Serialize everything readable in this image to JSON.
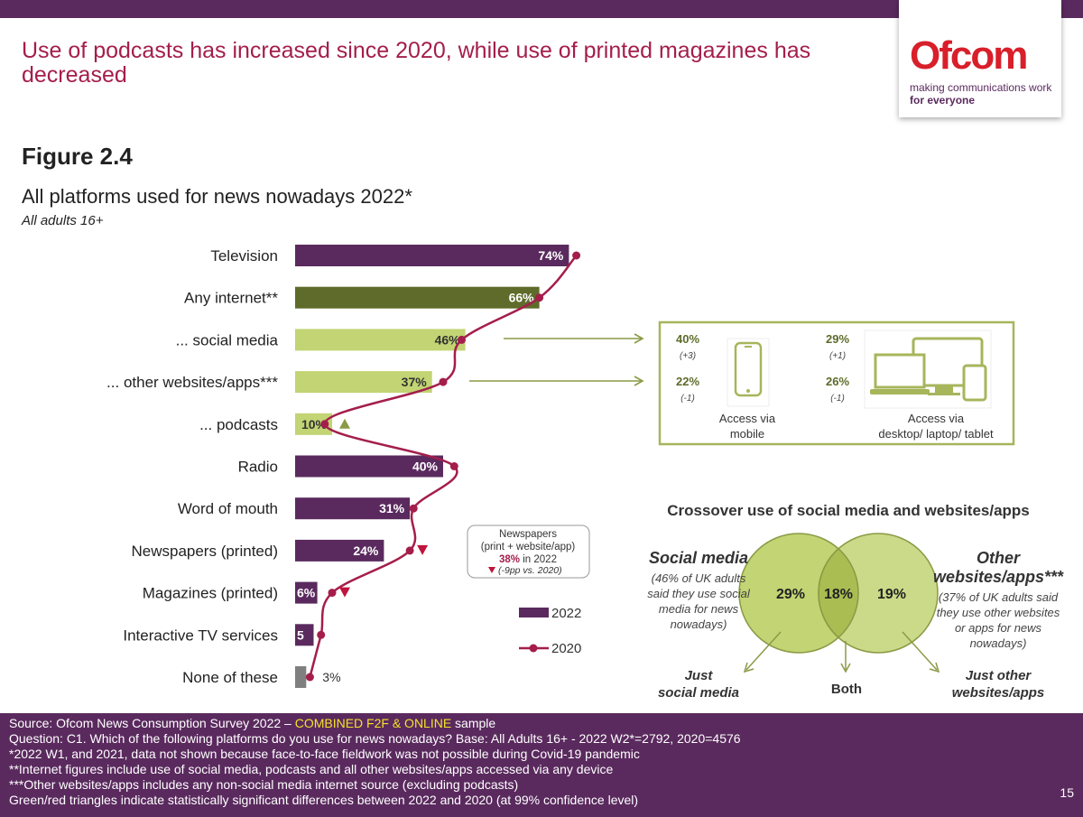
{
  "headline": "Use of podcasts has increased since 2020, while use of printed magazines has decreased",
  "logo": {
    "brand": "Ofcom",
    "tagline1": "making communications work",
    "tagline2": "for everyone"
  },
  "figure_label": "Figure 2.4",
  "colors": {
    "purple": "#5a2a5e",
    "dark_green": "#5e6b2a",
    "light_green": "#c2d473",
    "grey": "#7f7f7f",
    "line_red": "#a41e4b",
    "accent_green": "#8a9a45"
  },
  "chart_data": {
    "type": "bar",
    "title": "All platforms used for news nowadays 2022*",
    "subtitle": "All adults 16+",
    "categories": [
      "Television",
      "Any internet**",
      "... social media",
      "... other websites/apps***",
      "... podcasts",
      "Radio",
      "Word of mouth",
      "Newspapers (printed)",
      "Magazines (printed)",
      "Interactive TV services",
      "None of these"
    ],
    "series": [
      {
        "name": "2022",
        "values": [
          74,
          66,
          46,
          37,
          10,
          40,
          31,
          24,
          6,
          5,
          3
        ],
        "labels": [
          "74%",
          "66%",
          "46%",
          "37%",
          "10%",
          "40%",
          "31%",
          "24%",
          "6%",
          "5",
          "3%"
        ]
      },
      {
        "name": "2020",
        "values": [
          76,
          66,
          45,
          40,
          8,
          43,
          32,
          31,
          10,
          7,
          4
        ]
      }
    ],
    "bar_colors": [
      "purple",
      "dark_green",
      "light_green",
      "light_green",
      "light_green",
      "purple",
      "purple",
      "purple",
      "purple",
      "purple",
      "grey"
    ],
    "significance": [
      {
        "category": "... podcasts",
        "direction": "up",
        "color": "#8a9a45"
      },
      {
        "category": "Newspapers (printed)",
        "direction": "down",
        "color": "#c0143c"
      },
      {
        "category": "Magazines (printed)",
        "direction": "down",
        "color": "#c0143c"
      }
    ],
    "xlim": [
      0,
      100
    ],
    "legend_2022": "2022",
    "legend_2020": "2020",
    "newspapers_note": {
      "line1": "Newspapers",
      "line2": "(print + website/app)",
      "value": "38%",
      "suffix": " in 2022",
      "change": "(-9pp vs. 2020)"
    }
  },
  "access_panel": {
    "mobile": {
      "social_value": "40%",
      "social_change": "(+3)",
      "other_value": "22%",
      "other_change": "(-1)",
      "label1": "Access via",
      "label2": "mobile"
    },
    "desktop": {
      "social_value": "29%",
      "social_change": "(+1)",
      "other_value": "26%",
      "other_change": "(-1)",
      "label1": "Access via",
      "label2": "desktop/ laptop/ tablet"
    }
  },
  "crossover": {
    "title": "Crossover use of social media and websites/apps",
    "left_title": "Social media",
    "left_desc": [
      "(46% of UK adults",
      "said they use social",
      "media for news",
      "nowadays)"
    ],
    "right_title": [
      "Other",
      "websites/apps***"
    ],
    "right_desc": [
      "(37% of UK adults said",
      "they use other websites",
      "or apps for news",
      "nowadays)"
    ],
    "left_value": "29%",
    "both_value": "18%",
    "right_value": "19%",
    "left_label": [
      "Just",
      "social media"
    ],
    "both_label": "Both",
    "right_label": [
      "Just other",
      "websites/apps"
    ]
  },
  "footer": {
    "source_prefix": "Source: Ofcom News Consumption Survey 2022 – ",
    "source_highlight": "COMBINED F2F & ONLINE",
    "source_suffix": " sample",
    "question": "Question: C1. Which of the following platforms do you use for news nowadays?   Base: All Adults 16+ - 2022 W2*=2792, 2020=4576",
    "note1": "*2022 W1, and 2021, data not shown because face-to-face fieldwork was not possible during Covid-19 pandemic",
    "note2": "**Internet figures include use of social media, podcasts and all other websites/apps accessed via any device",
    "note3": "***Other websites/apps includes any non-social media internet source (excluding podcasts)",
    "note4": "Green/red triangles indicate statistically significant differences between 2022 and 2020 (at 99% confidence level)",
    "page_number": "15"
  }
}
